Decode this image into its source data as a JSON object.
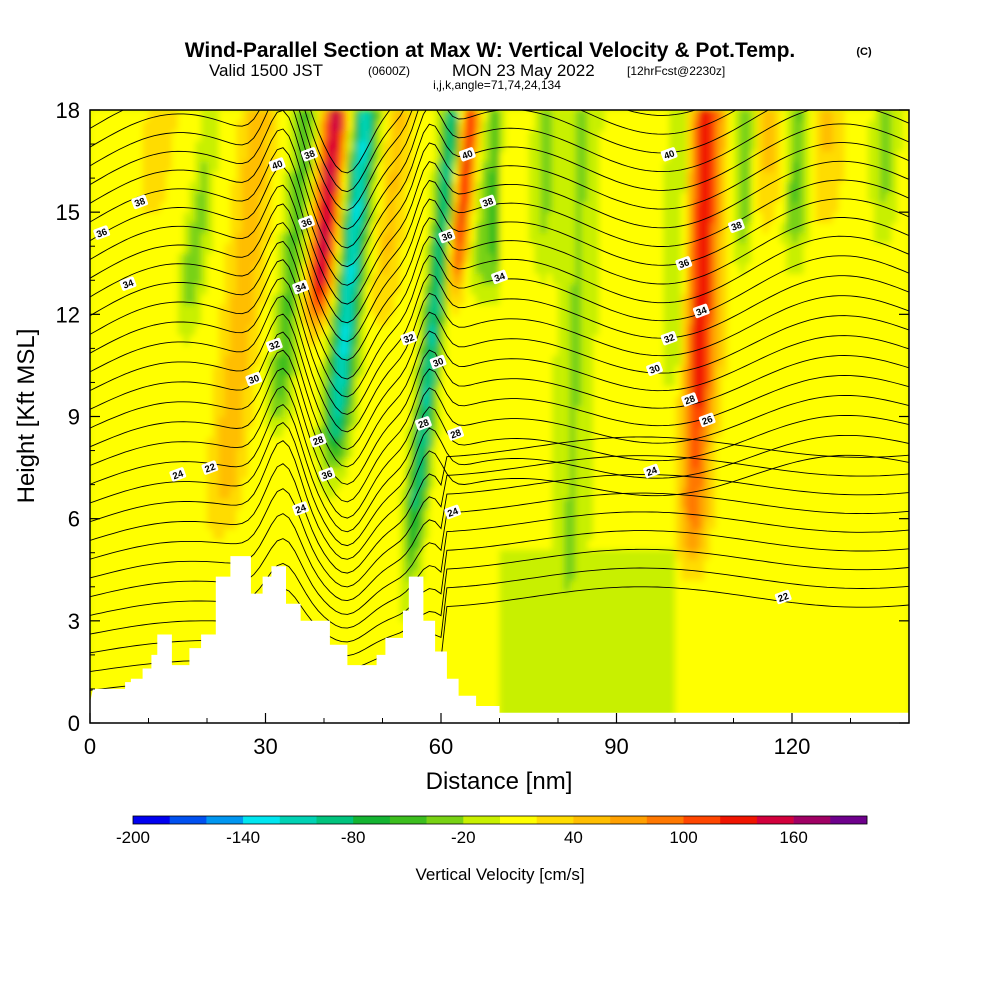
{
  "title": {
    "main": "Wind-Parallel Section at Max W: Vertical Velocity & Pot.Temp.",
    "copyright": "(C)",
    "valid_prefix": "Valid 1500 JST",
    "valid_utc": "(0600Z)",
    "valid_date": "MON 23 May 2022",
    "forecast": "[12hrFcst@2230z]",
    "grid_info": "i,j,k,angle=71,74,24,134"
  },
  "chart_data": {
    "type": "heatmap",
    "xlabel": "Distance [nm]",
    "ylabel": "Height [Kft MSL]",
    "xlim": [
      0,
      140
    ],
    "ylim": [
      0,
      18
    ],
    "x_ticks": [
      "0",
      "30",
      "60",
      "90",
      "120"
    ],
    "y_ticks": [
      "0",
      "3",
      "6",
      "9",
      "12",
      "15",
      "18"
    ],
    "colorbar": {
      "title": "Vertical Velocity [cm/s]",
      "labels": [
        "-200",
        "-140",
        "-80",
        "-20",
        "40",
        "100",
        "160"
      ],
      "levels": [
        -200,
        -180,
        -160,
        -140,
        -120,
        -100,
        -80,
        -60,
        -40,
        -20,
        0,
        20,
        40,
        60,
        80,
        100,
        120,
        140,
        160,
        180
      ],
      "colors": [
        "#0000f0",
        "#0050f0",
        "#0096f0",
        "#00e6f0",
        "#00d2b4",
        "#00c37d",
        "#14b432",
        "#3cbe1e",
        "#78d214",
        "#c8f000",
        "#ffff00",
        "#ffdc00",
        "#ffbe00",
        "#ffa000",
        "#ff7800",
        "#ff4600",
        "#f01400",
        "#d2003c",
        "#a00064",
        "#6e008c"
      ]
    },
    "theta_contours": {
      "levels": [
        22,
        24,
        26,
        28,
        30,
        32,
        34,
        36,
        38,
        40
      ],
      "labels": [
        {
          "text": "40",
          "x": 32,
          "y": 16.4
        },
        {
          "text": "38",
          "x": 37.5,
          "y": 16.7
        },
        {
          "text": "36",
          "x": 37,
          "y": 14.7
        },
        {
          "text": "34",
          "x": 36,
          "y": 12.8
        },
        {
          "text": "32",
          "x": 31.5,
          "y": 11.1
        },
        {
          "text": "30",
          "x": 28,
          "y": 10.1
        },
        {
          "text": "28",
          "x": 39,
          "y": 8.3
        },
        {
          "text": "36",
          "x": 40.5,
          "y": 7.3
        },
        {
          "text": "24",
          "x": 36,
          "y": 6.3
        },
        {
          "text": "24",
          "x": 15,
          "y": 7.3
        },
        {
          "text": "22",
          "x": 20.5,
          "y": 7.5
        },
        {
          "text": "38",
          "x": 8.5,
          "y": 15.3
        },
        {
          "text": "36",
          "x": 2,
          "y": 14.4
        },
        {
          "text": "34",
          "x": 6.5,
          "y": 12.9
        },
        {
          "text": "40",
          "x": 64.5,
          "y": 16.7
        },
        {
          "text": "38",
          "x": 68,
          "y": 15.3
        },
        {
          "text": "36",
          "x": 61,
          "y": 14.3
        },
        {
          "text": "34",
          "x": 70,
          "y": 13.1
        },
        {
          "text": "32",
          "x": 54.5,
          "y": 11.3
        },
        {
          "text": "30",
          "x": 59.5,
          "y": 10.6
        },
        {
          "text": "28",
          "x": 57,
          "y": 8.8
        },
        {
          "text": "28",
          "x": 62.5,
          "y": 8.5
        },
        {
          "text": "24",
          "x": 62,
          "y": 6.2
        },
        {
          "text": "40",
          "x": 99,
          "y": 16.7
        },
        {
          "text": "38",
          "x": 110.5,
          "y": 14.6
        },
        {
          "text": "36",
          "x": 101.5,
          "y": 13.5
        },
        {
          "text": "34",
          "x": 104.5,
          "y": 12.1
        },
        {
          "text": "32",
          "x": 99,
          "y": 11.3
        },
        {
          "text": "30",
          "x": 96.5,
          "y": 10.4
        },
        {
          "text": "28",
          "x": 102.5,
          "y": 9.5
        },
        {
          "text": "26",
          "x": 105.5,
          "y": 8.9
        },
        {
          "text": "24",
          "x": 96,
          "y": 7.4
        },
        {
          "text": "22",
          "x": 118.5,
          "y": 3.7
        }
      ]
    },
    "terrain": [
      [
        0,
        0.6
      ],
      [
        0.5,
        1.0
      ],
      [
        6,
        1.0
      ],
      [
        6,
        1.2
      ],
      [
        7,
        1.2
      ],
      [
        7,
        1.3
      ],
      [
        9,
        1.3
      ],
      [
        9,
        1.6
      ],
      [
        10.5,
        1.6
      ],
      [
        10.5,
        2.0
      ],
      [
        11.5,
        2.0
      ],
      [
        11.5,
        2.6
      ],
      [
        14,
        2.6
      ],
      [
        14,
        1.7
      ],
      [
        17,
        1.7
      ],
      [
        17,
        2.2
      ],
      [
        19,
        2.2
      ],
      [
        19,
        2.6
      ],
      [
        21.5,
        2.6
      ],
      [
        21.5,
        4.3
      ],
      [
        24,
        4.3
      ],
      [
        24,
        4.9
      ],
      [
        27.5,
        4.9
      ],
      [
        27.5,
        3.8
      ],
      [
        29.5,
        3.8
      ],
      [
        29.5,
        4.3
      ],
      [
        31,
        4.3
      ],
      [
        31,
        4.6
      ],
      [
        33.5,
        4.6
      ],
      [
        33.5,
        3.5
      ],
      [
        36,
        3.5
      ],
      [
        36,
        3.0
      ],
      [
        41,
        3.0
      ],
      [
        41,
        2.3
      ],
      [
        44,
        2.3
      ],
      [
        44,
        1.7
      ],
      [
        49,
        1.7
      ],
      [
        49,
        2.0
      ],
      [
        50.5,
        2.0
      ],
      [
        50.5,
        2.5
      ],
      [
        53.5,
        2.5
      ],
      [
        53.5,
        3.3
      ],
      [
        54.5,
        3.3
      ],
      [
        54.5,
        4.3
      ],
      [
        57,
        4.3
      ],
      [
        57,
        3.0
      ],
      [
        59,
        3.0
      ],
      [
        59,
        2.1
      ],
      [
        61,
        2.1
      ],
      [
        61,
        1.3
      ],
      [
        63,
        1.3
      ],
      [
        63,
        0.8
      ],
      [
        66,
        0.8
      ],
      [
        66,
        0.5
      ],
      [
        70,
        0.5
      ],
      [
        70,
        0.3
      ],
      [
        139.5,
        0.3
      ]
    ]
  }
}
